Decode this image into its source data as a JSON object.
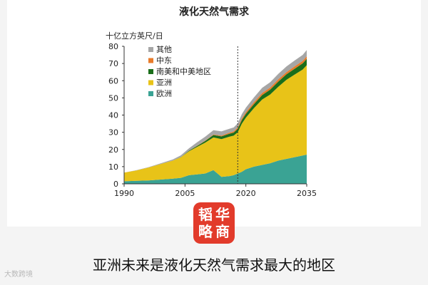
{
  "logo_chars": [
    "韬",
    "华",
    "略",
    "商"
  ],
  "caption": "亚洲未来是液化天然气需求最大的地区",
  "watermark": "大数跨境",
  "chart_data": {
    "type": "area",
    "stacked": true,
    "title": "液化天然气需求",
    "ylabel": "十亿立方英尺/日",
    "xlabel": "",
    "xlim": [
      1990,
      2035
    ],
    "ylim": [
      0,
      80
    ],
    "yticks": [
      0,
      10,
      20,
      30,
      40,
      50,
      60,
      70,
      80
    ],
    "xticks": [
      1990,
      2005,
      2020,
      2035
    ],
    "divider_x": 2018,
    "legend_position": "top-left",
    "x": [
      1990,
      1993,
      1996,
      1999,
      2002,
      2004,
      2006,
      2008,
      2010,
      2012,
      2014,
      2016,
      2017,
      2018,
      2019,
      2020,
      2022,
      2024,
      2026,
      2028,
      2030,
      2032,
      2034,
      2035
    ],
    "series": [
      {
        "name": "欧洲",
        "color": "#3aa394",
        "values": [
          1.5,
          1.8,
          2,
          2.5,
          3,
          3.5,
          5,
          5.5,
          6,
          8,
          4,
          4.5,
          5,
          6,
          7,
          8.5,
          10,
          11,
          12,
          13.5,
          14.5,
          15.5,
          16.5,
          17
        ]
      },
      {
        "name": "亚洲",
        "color": "#e8c318",
        "values": [
          5,
          6,
          7.5,
          9,
          10.5,
          12,
          14,
          16,
          18,
          19,
          22,
          23,
          23,
          24,
          28,
          30,
          34,
          38,
          40,
          43,
          46,
          48,
          50,
          52
        ]
      },
      {
        "name": "南美和中美地区",
        "color": "#1a6e1a",
        "values": [
          0,
          0,
          0,
          0,
          0,
          0.1,
          0.3,
          0.6,
          1,
          1.4,
          1.6,
          1.7,
          1.8,
          2,
          2.1,
          2.2,
          2.4,
          2.6,
          2.8,
          3,
          3.2,
          3.4,
          3.6,
          3.7
        ]
      },
      {
        "name": "中东",
        "color": "#e87b2a",
        "values": [
          0,
          0,
          0,
          0,
          0,
          0,
          0,
          0.1,
          0.2,
          0.3,
          0.5,
          0.6,
          0.7,
          0.8,
          0.9,
          1,
          1.1,
          1.2,
          1.2,
          1.3,
          1.3,
          1.4,
          1.4,
          1.5
        ]
      },
      {
        "name": "其他",
        "color": "#a6a6a6",
        "values": [
          0,
          0.1,
          0.2,
          0.4,
          0.7,
          1,
          1.4,
          2,
          2.3,
          2.5,
          2.4,
          2.3,
          2.3,
          2.4,
          2.5,
          2.6,
          2.8,
          3,
          3.1,
          3.2,
          3.3,
          3.4,
          3.5,
          3.6
        ]
      }
    ]
  }
}
